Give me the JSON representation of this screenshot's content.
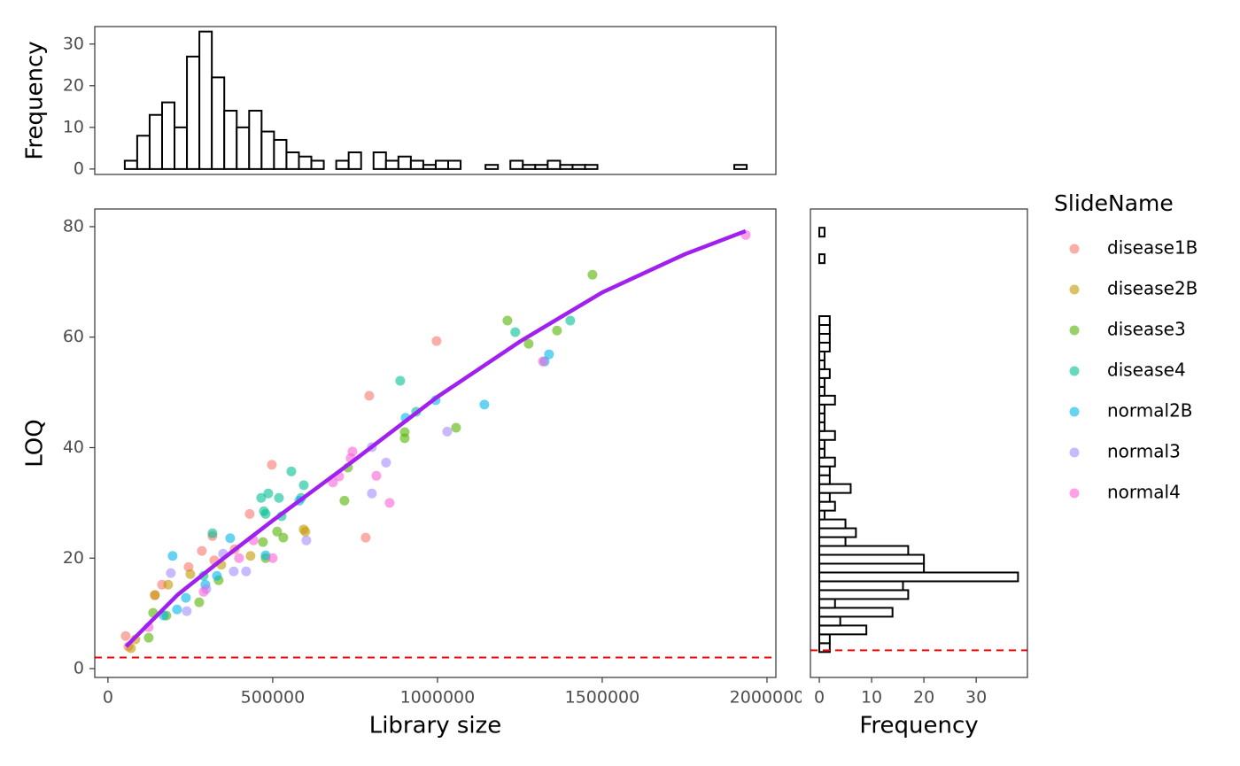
{
  "chart_data": [
    {
      "type": "histogram",
      "ylabel": "Frequency",
      "bins": [
        51000,
        88750,
        126500,
        164250,
        202000,
        239750,
        277500,
        315250,
        353000,
        390750,
        428500,
        466250,
        504000,
        541750,
        579500,
        617250,
        655000,
        692750,
        730500,
        768250,
        806000,
        843750,
        881500,
        919250,
        957000,
        994750,
        1032500,
        1070250,
        1108000,
        1145750,
        1183500,
        1221250,
        1259000,
        1296750,
        1334500,
        1372250,
        1410000,
        1447750,
        1485500,
        1523250,
        1561000,
        1598750,
        1636500,
        1674250,
        1712000,
        1749750,
        1787500,
        1825250,
        1863000,
        1900750,
        1938500
      ],
      "counts": [
        2,
        8,
        13,
        16,
        10,
        27,
        33,
        22,
        14,
        10,
        14,
        9,
        7,
        4,
        3,
        2,
        0,
        2,
        4,
        0,
        4,
        2,
        3,
        2,
        1,
        2,
        2,
        0,
        0,
        1,
        0,
        2,
        1,
        1,
        2,
        1,
        1,
        1,
        0,
        0,
        0,
        0,
        0,
        0,
        0,
        0,
        0,
        0,
        0,
        1
      ],
      "color": "#000000",
      "xlim": [
        -40000,
        2027000
      ],
      "ylim": [
        -1.3,
        34.2
      ],
      "yticks": [
        0,
        10,
        20,
        30
      ]
    },
    {
      "type": "scatter",
      "xlabel": "Library size",
      "ylabel": "LOQ",
      "legend_title": "SlideName",
      "xlim": [
        -40000,
        2027000
      ],
      "ylim": [
        -1.6,
        83.2
      ],
      "xticks": [
        0,
        500000,
        1000000,
        1500000,
        2000000
      ],
      "yticks": [
        0,
        20,
        40,
        60,
        80
      ],
      "hline": 2,
      "hline_color": "#ff0000",
      "fit": {
        "color": "#a020f0",
        "x": [
          55000,
          212000,
          345000,
          500000,
          747000,
          1000000,
          1250000,
          1500000,
          1750000,
          1935000
        ],
        "y": [
          4.0,
          13.4,
          19.7,
          26.8,
          37.7,
          49.2,
          59.2,
          68.1,
          75.0,
          79.2
        ]
      },
      "series": [
        {
          "name": "disease1B",
          "color": "#F8766D",
          "x": [
            53800,
            61800,
            164000,
            244600,
            285000,
            317200,
            322600,
            384400,
            430100,
            497300,
            793000,
            997300,
            782200,
            142500
          ],
          "y": [
            5.9,
            4.0,
            15.2,
            18.4,
            21.3,
            24.0,
            19.6,
            21.6,
            28.0,
            36.9,
            49.4,
            59.3,
            23.7,
            13.3
          ]
        },
        {
          "name": "disease2B",
          "color": "#C49A00",
          "x": [
            69900,
            83300,
            142500,
            182800,
            250000,
            432800,
            594000,
            599000,
            344000
          ],
          "y": [
            3.7,
            5.3,
            13.3,
            15.2,
            17.1,
            20.4,
            25.2,
            24.8,
            18.8
          ]
        },
        {
          "name": "disease3",
          "color": "#53B400",
          "x": [
            123600,
            137100,
            177400,
            276900,
            336000,
            470400,
            478500,
            513400,
            532200,
            717700,
            728400,
            900500,
            900500,
            1056400,
            1212300,
            1276800,
            1362800,
            1470400
          ],
          "y": [
            5.6,
            10.1,
            9.6,
            12.0,
            16.0,
            22.9,
            20.0,
            24.8,
            23.7,
            30.4,
            36.4,
            42.8,
            41.7,
            43.6,
            63.0,
            58.8,
            61.2,
            71.3
          ]
        },
        {
          "name": "disease4",
          "color": "#00C094",
          "x": [
            290300,
            317200,
            465000,
            473100,
            478500,
            486600,
            518900,
            527000,
            556600,
            586200,
            594300,
            887000,
            935400,
            1236000,
            1403000
          ],
          "y": [
            16.8,
            24.5,
            30.9,
            28.5,
            28.0,
            31.7,
            30.9,
            27.6,
            35.7,
            30.9,
            33.2,
            52.1,
            46.5,
            60.9,
            63.0
          ]
        },
        {
          "name": "normal2B",
          "color": "#00B6EB",
          "x": [
            196200,
            209700,
            169300,
            236500,
            295700,
            330600,
            371000,
            478500,
            580600,
            903200,
            994600,
            1142400,
            1325200,
            1338600
          ],
          "y": [
            20.4,
            10.7,
            9.6,
            12.8,
            15.2,
            16.8,
            23.6,
            20.5,
            30.4,
            45.4,
            48.6,
            47.8,
            55.6,
            56.9
          ]
        },
        {
          "name": "normal3",
          "color": "#A58AFF",
          "x": [
            190800,
            239200,
            298400,
            349400,
            381700,
            419300,
            602100,
            801000,
            801000,
            844000,
            1029500
          ],
          "y": [
            17.3,
            10.4,
            14.4,
            20.8,
            17.6,
            17.6,
            23.2,
            40.1,
            31.7,
            37.3,
            42.9
          ]
        },
        {
          "name": "normal4",
          "color": "#FB61D7",
          "x": [
            123600,
            290300,
            397800,
            441700,
            500000,
            682800,
            701600,
            736500,
            741900,
            814500,
            854800,
            1319800,
            1935500
          ],
          "y": [
            7.5,
            13.9,
            20.0,
            23.2,
            20.0,
            33.7,
            34.8,
            38.1,
            39.3,
            34.9,
            30.0,
            55.6,
            78.5
          ]
        }
      ]
    },
    {
      "type": "histogram",
      "orientation": "horizontal",
      "xlabel": "Frequency",
      "bins": [
        3.0,
        4.6,
        6.2,
        7.8,
        9.4,
        11.0,
        12.6,
        14.2,
        15.8,
        17.4,
        19.0,
        20.6,
        22.2,
        23.8,
        25.4,
        27.0,
        28.6,
        30.2,
        31.8,
        33.4,
        35.0,
        36.6,
        38.2,
        39.8,
        41.4,
        43.0,
        44.6,
        46.2,
        47.8,
        49.4,
        51.0,
        52.6,
        54.2,
        55.8,
        57.4,
        59.0,
        60.6,
        62.2,
        63.8,
        65.4,
        67.0,
        68.6,
        70.2,
        71.8,
        73.4,
        75.0,
        76.6,
        78.2,
        79.8
      ],
      "counts": [
        2,
        2,
        9,
        4,
        14,
        3,
        17,
        16,
        38,
        20,
        20,
        17,
        5,
        7,
        5,
        1,
        3,
        2,
        6,
        2,
        2,
        3,
        1,
        1,
        3,
        1,
        1,
        1,
        3,
        1,
        1,
        2,
        1,
        1,
        2,
        2,
        2,
        2,
        0,
        0,
        0,
        0,
        0,
        0,
        1,
        0,
        0,
        1
      ],
      "color": "#000000",
      "xlim": [
        -1.7,
        39.8
      ],
      "ylim": [
        -1.6,
        83.2
      ],
      "xticks": [
        0,
        10,
        20,
        30
      ],
      "hline": 3.3,
      "hline_color": "#ff0000"
    }
  ]
}
